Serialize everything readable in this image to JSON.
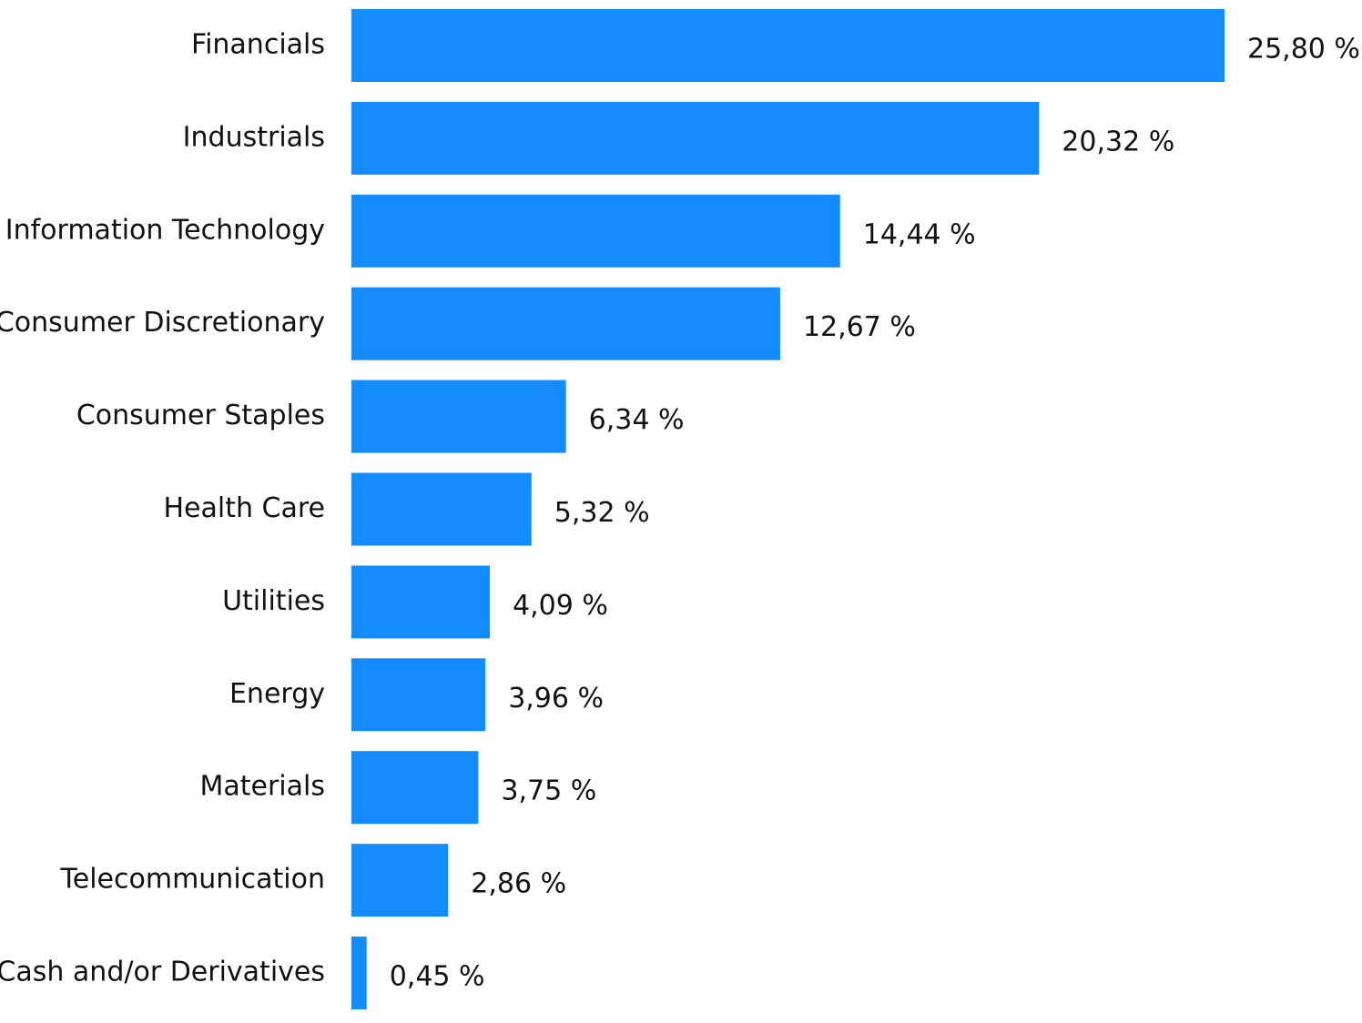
{
  "chart_data": {
    "type": "bar",
    "orientation": "horizontal",
    "categories": [
      "Financials",
      "Industrials",
      "Information Technology",
      "Consumer Discretionary",
      "Consumer Staples",
      "Health Care",
      "Utilities",
      "Energy",
      "Materials",
      "Telecommunication",
      "Cash and/or Derivatives"
    ],
    "values": [
      25.8,
      20.32,
      14.44,
      12.67,
      6.34,
      5.32,
      4.09,
      3.96,
      3.75,
      2.86,
      0.45
    ],
    "value_labels": [
      "25,80 %",
      "20,32 %",
      "14,44 %",
      "12,67 %",
      "6,34 %",
      "5,32 %",
      "4,09 %",
      "3,96 %",
      "3,75 %",
      "2,86 %",
      "0,45 %"
    ],
    "title": "",
    "xlabel": "",
    "ylabel": "",
    "xlim": [
      0,
      25.8
    ],
    "grid": false,
    "legend": "none",
    "bar_color": "#148cff"
  }
}
